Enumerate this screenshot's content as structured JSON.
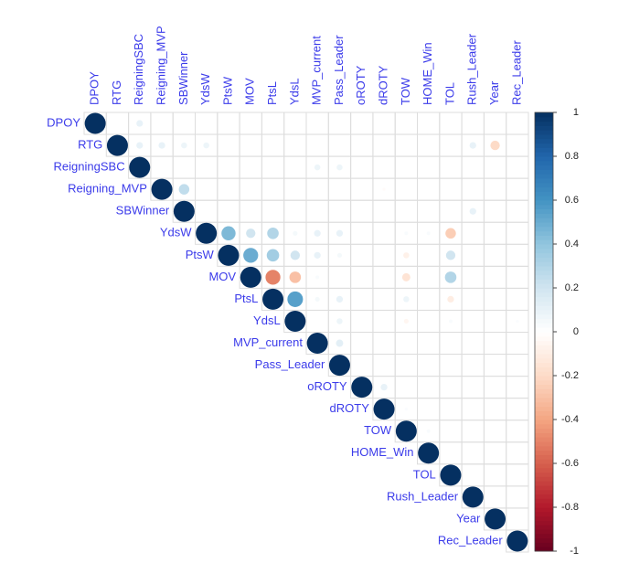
{
  "chart_data": {
    "type": "corrplot",
    "variables": [
      "DPOY",
      "RTG",
      "ReigningSBC",
      "Reigning_MVP",
      "SBWinner",
      "YdsW",
      "PtsW",
      "MOV",
      "PtsL",
      "YdsL",
      "MVP_current",
      "Pass_Leader",
      "oROTY",
      "dROTY",
      "TOW",
      "HOME_Win",
      "TOL",
      "Rush_Leader",
      "Year",
      "Rec_Leader"
    ],
    "values": [
      [
        1,
        0,
        0.1,
        0,
        0,
        0,
        0,
        0,
        0,
        0,
        0,
        0,
        0,
        0,
        0,
        0,
        0,
        0,
        0,
        0
      ],
      [
        null,
        1,
        0.1,
        0.1,
        0.08,
        0.08,
        0,
        0,
        0,
        0,
        0,
        0,
        0,
        0,
        0,
        0,
        0,
        0.1,
        -0.2,
        0
      ],
      [
        null,
        null,
        1,
        0,
        0,
        0,
        0,
        0,
        0,
        0,
        0.08,
        0.08,
        0,
        0,
        0,
        0,
        0,
        0,
        0,
        0
      ],
      [
        null,
        null,
        null,
        1,
        0.25,
        0,
        0,
        0,
        0,
        0,
        0,
        0,
        0,
        -0.02,
        0,
        0,
        0,
        0,
        0,
        0
      ],
      [
        null,
        null,
        null,
        null,
        1,
        0,
        0,
        0,
        0,
        0,
        0,
        0,
        0,
        0,
        0,
        0,
        0,
        0.1,
        0,
        0
      ],
      [
        null,
        null,
        null,
        null,
        null,
        1,
        0.45,
        0.2,
        0.3,
        0.05,
        0.1,
        0.1,
        0,
        0,
        0.03,
        0.03,
        -0.25,
        0,
        0,
        0
      ],
      [
        null,
        null,
        null,
        null,
        null,
        null,
        1,
        0.5,
        0.35,
        0.2,
        0.1,
        0.05,
        0,
        0,
        -0.08,
        0,
        0.2,
        0,
        0,
        0
      ],
      [
        null,
        null,
        null,
        null,
        null,
        null,
        null,
        1,
        -0.5,
        -0.3,
        0.03,
        0,
        0,
        0,
        -0.15,
        0,
        0.3,
        0,
        0,
        0
      ],
      [
        null,
        null,
        null,
        null,
        null,
        null,
        null,
        null,
        1,
        0.55,
        0.05,
        0.1,
        0,
        0,
        0.08,
        0,
        -0.1,
        0,
        0,
        0
      ],
      [
        null,
        null,
        null,
        null,
        null,
        null,
        null,
        null,
        null,
        1,
        0,
        0.08,
        0,
        0,
        -0.05,
        0,
        0.03,
        0,
        0,
        0.02
      ],
      [
        null,
        null,
        null,
        null,
        null,
        null,
        null,
        null,
        null,
        null,
        1,
        0.12,
        0,
        0,
        0,
        0,
        0,
        0,
        0,
        0
      ],
      [
        null,
        null,
        null,
        null,
        null,
        null,
        null,
        null,
        null,
        null,
        null,
        1,
        0,
        0,
        0,
        0,
        0,
        0,
        0,
        0
      ],
      [
        null,
        null,
        null,
        null,
        null,
        null,
        null,
        null,
        null,
        null,
        null,
        null,
        1,
        0.1,
        0,
        0,
        0,
        0,
        0,
        0
      ],
      [
        null,
        null,
        null,
        null,
        null,
        null,
        null,
        null,
        null,
        null,
        null,
        null,
        null,
        1,
        0.02,
        0,
        0,
        0,
        0,
        0
      ],
      [
        null,
        null,
        null,
        null,
        null,
        null,
        null,
        null,
        null,
        null,
        null,
        null,
        null,
        null,
        1,
        0.03,
        0,
        0,
        0,
        0
      ],
      [
        null,
        null,
        null,
        null,
        null,
        null,
        null,
        null,
        null,
        null,
        null,
        null,
        null,
        null,
        null,
        1,
        0,
        0,
        0,
        0
      ],
      [
        null,
        null,
        null,
        null,
        null,
        null,
        null,
        null,
        null,
        null,
        null,
        null,
        null,
        null,
        null,
        null,
        1,
        0,
        0,
        0
      ],
      [
        null,
        null,
        null,
        null,
        null,
        null,
        null,
        null,
        null,
        null,
        null,
        null,
        null,
        null,
        null,
        null,
        null,
        1,
        0,
        0
      ],
      [
        null,
        null,
        null,
        null,
        null,
        null,
        null,
        null,
        null,
        null,
        null,
        null,
        null,
        null,
        null,
        null,
        null,
        null,
        1,
        0
      ],
      [
        null,
        null,
        null,
        null,
        null,
        null,
        null,
        null,
        null,
        null,
        null,
        null,
        null,
        null,
        null,
        null,
        null,
        null,
        null,
        1
      ]
    ],
    "clim": [
      -1,
      1
    ],
    "cticks": [
      -1,
      -0.8,
      -0.6,
      -0.4,
      -0.2,
      0,
      0.2,
      0.4,
      0.6,
      0.8,
      1
    ],
    "colors": [
      "#67001F",
      "#B2182B",
      "#D6604D",
      "#F4A582",
      "#FDDBC7",
      "#FFFFFF",
      "#D1E5F0",
      "#92C5DE",
      "#4393C3",
      "#2166AC",
      "#053061"
    ]
  }
}
